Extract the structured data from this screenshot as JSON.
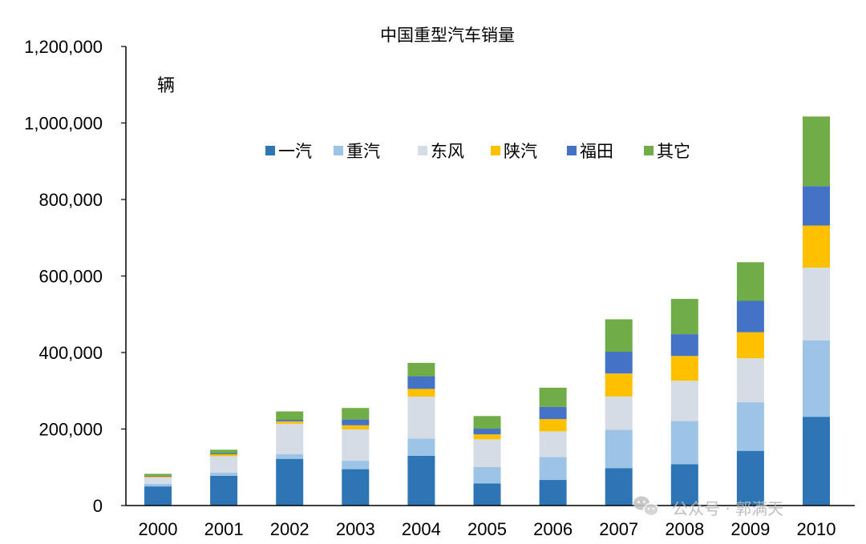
{
  "chart_data": {
    "type": "bar",
    "stacked": true,
    "title": "中国重型汽车销量",
    "unit_label": "辆",
    "xlabel": "",
    "ylabel": "",
    "ylim": [
      0,
      1200000
    ],
    "y_ticks": [
      0,
      200000,
      400000,
      600000,
      800000,
      1000000,
      1200000
    ],
    "y_tick_labels": [
      "0",
      "200,000",
      "400,000",
      "600,000",
      "800,000",
      "1,000,000",
      "1,200,000"
    ],
    "grid": false,
    "legend_position": "top-center",
    "categories": [
      "2000",
      "2001",
      "2002",
      "2003",
      "2004",
      "2005",
      "2006",
      "2007",
      "2008",
      "2009",
      "2010"
    ],
    "series": [
      {
        "name": "一汽",
        "color": "#2e75b6",
        "values": [
          50000,
          78000,
          122000,
          95000,
          130000,
          58000,
          67000,
          98000,
          108000,
          143000,
          232000
        ]
      },
      {
        "name": "重汽",
        "color": "#9dc3e6",
        "values": [
          7000,
          8000,
          12000,
          22000,
          45000,
          43000,
          60000,
          100000,
          113000,
          127000,
          200000
        ]
      },
      {
        "name": "东风",
        "color": "#d6dce5",
        "values": [
          16000,
          43000,
          80000,
          82000,
          110000,
          72000,
          67000,
          87000,
          105000,
          115000,
          190000
        ]
      },
      {
        "name": "陕汽",
        "color": "#ffc000",
        "values": [
          3000,
          5000,
          6000,
          11000,
          20000,
          13000,
          32000,
          60000,
          65000,
          68000,
          110000
        ]
      },
      {
        "name": "福田",
        "color": "#4472c4",
        "values": [
          2000,
          3000,
          4000,
          15000,
          33000,
          15000,
          32000,
          57000,
          57000,
          82000,
          103000
        ]
      },
      {
        "name": "其它",
        "color": "#70ad47",
        "values": [
          5000,
          9000,
          22000,
          30000,
          35000,
          33000,
          50000,
          85000,
          92000,
          101000,
          182000
        ]
      }
    ]
  },
  "watermark": {
    "icon": "wechat-icon",
    "text": "公众号 · 郭满天"
  }
}
